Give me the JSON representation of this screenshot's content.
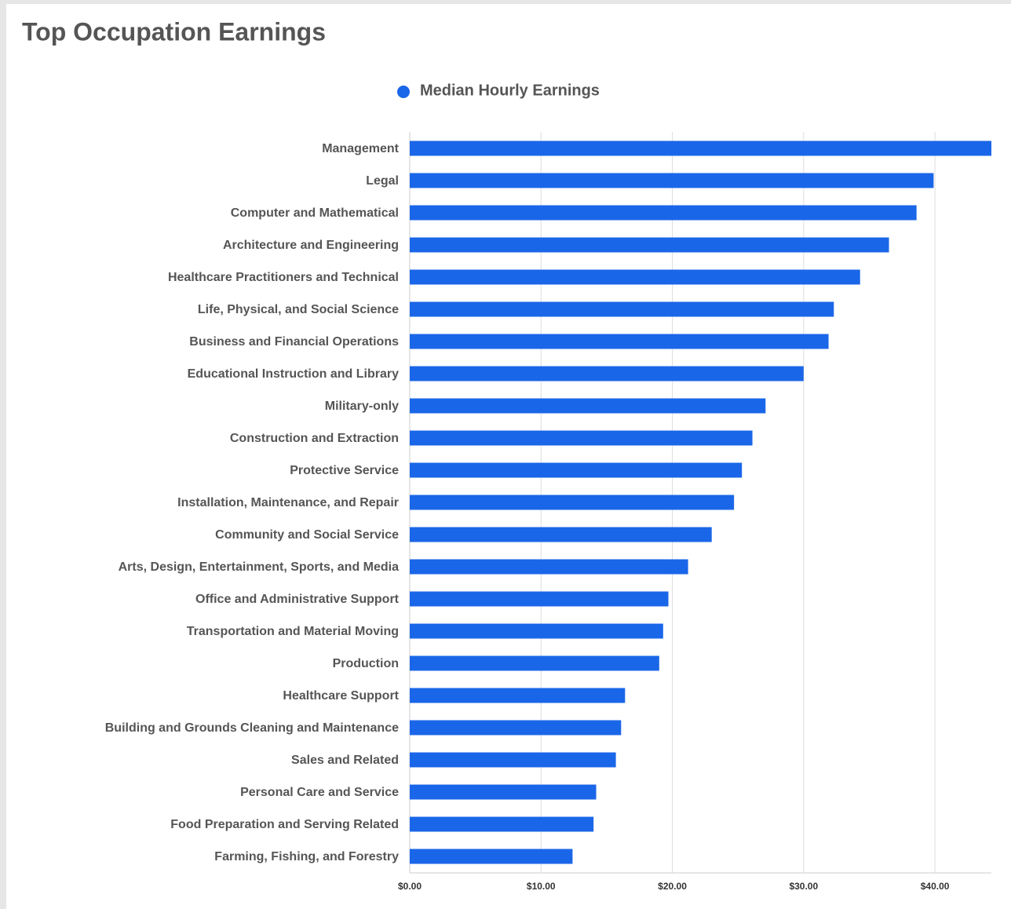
{
  "chart_data": {
    "type": "bar",
    "orientation": "horizontal",
    "title": "Top Occupation Earnings",
    "categories": [
      "Management",
      "Legal",
      "Computer and Mathematical",
      "Architecture and Engineering",
      "Healthcare Practitioners and Technical",
      "Life, Physical, and Social Science",
      "Business and Financial Operations",
      "Educational Instruction and Library",
      "Military-only",
      "Construction  and  Extraction",
      "Protective Service",
      "Installation, Maintenance, and Repair",
      "Community and Social Service",
      "Arts, Design, Entertainment, Sports, and Media",
      "Office and Administrative Support",
      "Transportation  and  Material  Moving",
      "Production",
      "Healthcare Support",
      "Building and Grounds Cleaning and Maintenance",
      "Sales and Related",
      "Personal Care and Service",
      "Food Preparation and Serving Related",
      "Farming, Fishing, and Forestry"
    ],
    "series": [
      {
        "name": "Median Hourly Earnings",
        "color": "#1a66e8",
        "values": [
          44.3,
          39.9,
          38.6,
          36.5,
          34.3,
          32.3,
          31.9,
          30.0,
          27.1,
          26.1,
          25.3,
          24.7,
          23.0,
          21.2,
          19.7,
          19.3,
          19.0,
          16.4,
          16.1,
          15.7,
          14.2,
          14.0,
          12.4
        ]
      }
    ],
    "xlim": [
      0,
      44.3
    ],
    "xticks": [
      {
        "value": 0,
        "label": "$0.00"
      },
      {
        "value": 10,
        "label": "$10.00"
      },
      {
        "value": 20,
        "label": "$20.00"
      },
      {
        "value": 30,
        "label": "$30.00"
      },
      {
        "value": 40,
        "label": "$40.00"
      }
    ],
    "grid": true,
    "legend": "top"
  }
}
